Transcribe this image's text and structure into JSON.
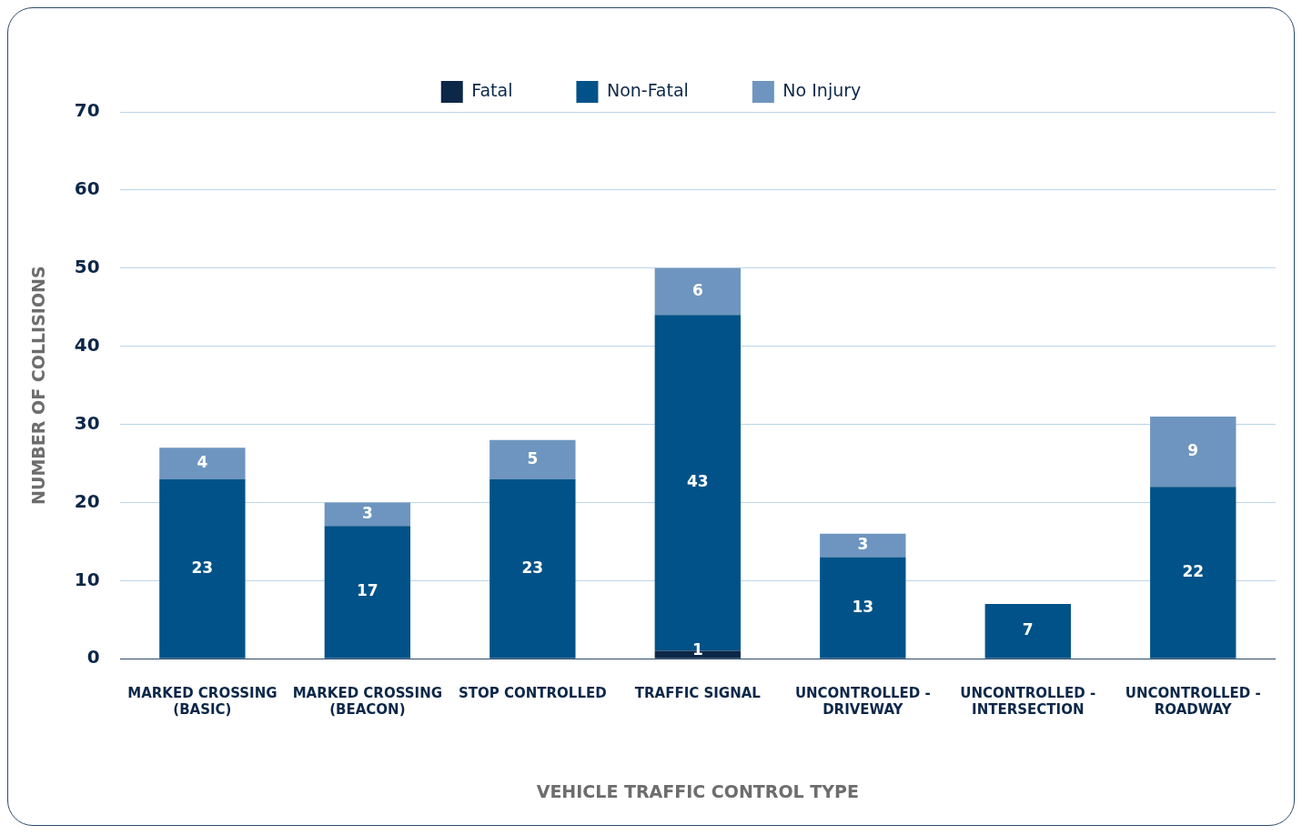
{
  "chart_data": {
    "type": "bar",
    "stacked": true,
    "xlabel": "VEHICLE TRAFFIC CONTROL TYPE",
    "ylabel": "NUMBER OF COLLISIONS",
    "categories": [
      "MARKED CROSSING (BASIC)",
      "MARKED CROSSING (BEACON)",
      "STOP CONTROLLED",
      "TRAFFIC SIGNAL",
      "UNCONTROLLED - DRIVEWAY",
      "UNCONTROLLED - INTERSECTION",
      "UNCONTROLLED - ROADWAY"
    ],
    "series": [
      {
        "name": "Fatal",
        "color": "#0c2748",
        "values": [
          null,
          null,
          null,
          1,
          null,
          null,
          null
        ]
      },
      {
        "name": "Non-Fatal",
        "color": "#005288",
        "values": [
          23,
          17,
          23,
          43,
          13,
          7,
          22
        ]
      },
      {
        "name": "No Injury",
        "color": "#6e95bf",
        "values": [
          4,
          3,
          5,
          6,
          3,
          null,
          9
        ]
      }
    ],
    "ylim": [
      0,
      70
    ],
    "yticks": [
      0,
      10,
      20,
      30,
      40,
      50,
      60,
      70
    ],
    "grid": "y",
    "legend": "top",
    "data_labels": true
  }
}
